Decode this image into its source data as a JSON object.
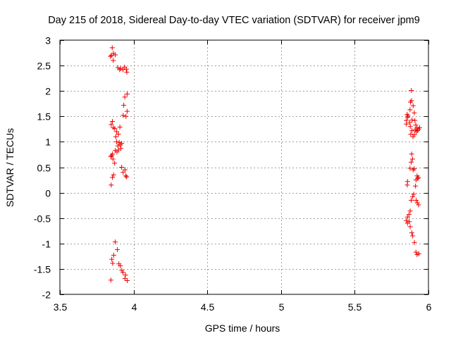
{
  "chart_data": {
    "type": "scatter",
    "title": "Day 215 of 2018, Sidereal Day-to-day VTEC variation (SDTVAR) for receiver jpm9",
    "xlabel": "GPS time / hours",
    "ylabel": "SDTVAR / TECUs",
    "xlim": [
      3.5,
      6
    ],
    "ylim": [
      -2,
      3
    ],
    "xticks": [
      3.5,
      4,
      4.5,
      5,
      5.5,
      6
    ],
    "yticks": [
      -2,
      -1.5,
      -1,
      -0.5,
      0,
      0.5,
      1,
      1.5,
      2,
      2.5,
      3
    ],
    "xtick_labels": [
      "3.5",
      "4",
      "4.5",
      "5",
      "5.5",
      "6"
    ],
    "ytick_labels": [
      "-2",
      "-1.5",
      "-1",
      "-0.5",
      "0",
      "0.5",
      "1",
      "1.5",
      "2",
      "2.5",
      "3"
    ],
    "grid": true,
    "marker": "+",
    "marker_color": "#ee0000",
    "series": [
      {
        "name": "SDTVAR",
        "points": [
          [
            3.855,
            2.85
          ],
          [
            3.843,
            2.68
          ],
          [
            3.85,
            2.7
          ],
          [
            3.863,
            2.74
          ],
          [
            3.862,
            2.6
          ],
          [
            3.876,
            2.71
          ],
          [
            3.893,
            2.46
          ],
          [
            3.905,
            2.42
          ],
          [
            3.913,
            2.44
          ],
          [
            3.928,
            2.42
          ],
          [
            3.939,
            2.47
          ],
          [
            3.951,
            2.43
          ],
          [
            3.954,
            2.37
          ],
          [
            3.94,
            1.88
          ],
          [
            3.956,
            1.94
          ],
          [
            3.933,
            1.72
          ],
          [
            3.956,
            1.6
          ],
          [
            3.948,
            1.5
          ],
          [
            3.929,
            1.52
          ],
          [
            3.848,
            1.34
          ],
          [
            3.856,
            1.4
          ],
          [
            3.862,
            1.28
          ],
          [
            3.872,
            1.26
          ],
          [
            3.885,
            1.2
          ],
          [
            3.897,
            1.15
          ],
          [
            3.907,
            1.29
          ],
          [
            3.879,
            1.1
          ],
          [
            3.885,
            1.0
          ],
          [
            3.893,
            0.92
          ],
          [
            3.902,
            0.99
          ],
          [
            3.91,
            0.94
          ],
          [
            3.919,
            0.97
          ],
          [
            3.914,
            0.87
          ],
          [
            3.898,
            0.84
          ],
          [
            3.887,
            0.8
          ],
          [
            3.876,
            0.83
          ],
          [
            3.857,
            0.76
          ],
          [
            3.851,
            0.73
          ],
          [
            3.845,
            0.71
          ],
          [
            3.86,
            0.66
          ],
          [
            3.871,
            0.58
          ],
          [
            3.919,
            0.5
          ],
          [
            3.929,
            0.4
          ],
          [
            3.942,
            0.45
          ],
          [
            3.947,
            0.33
          ],
          [
            3.953,
            0.31
          ],
          [
            3.864,
            0.35
          ],
          [
            3.856,
            0.3
          ],
          [
            3.848,
            0.15
          ],
          [
            3.875,
            -0.97
          ],
          [
            3.89,
            -1.12
          ],
          [
            3.865,
            -1.23
          ],
          [
            3.852,
            -1.31
          ],
          [
            3.858,
            -1.39
          ],
          [
            3.9,
            -1.4
          ],
          [
            3.91,
            -1.44
          ],
          [
            3.92,
            -1.53
          ],
          [
            3.928,
            -1.57
          ],
          [
            3.945,
            -1.62
          ],
          [
            3.941,
            -1.69
          ],
          [
            3.957,
            -1.73
          ],
          [
            3.846,
            -1.72
          ],
          [
            5.884,
            2.01
          ],
          [
            5.878,
            1.78
          ],
          [
            5.885,
            1.81
          ],
          [
            5.896,
            1.71
          ],
          [
            5.875,
            1.63
          ],
          [
            5.904,
            1.57
          ],
          [
            5.855,
            1.54
          ],
          [
            5.859,
            1.48
          ],
          [
            5.862,
            1.51
          ],
          [
            5.85,
            1.42
          ],
          [
            5.85,
            1.35
          ],
          [
            5.873,
            1.38
          ],
          [
            5.877,
            1.3
          ],
          [
            5.889,
            1.43
          ],
          [
            5.908,
            1.42
          ],
          [
            5.914,
            1.33
          ],
          [
            5.91,
            1.24
          ],
          [
            5.917,
            1.2
          ],
          [
            5.922,
            1.27
          ],
          [
            5.934,
            1.25
          ],
          [
            5.94,
            1.28
          ],
          [
            5.926,
            1.22
          ],
          [
            5.888,
            1.22
          ],
          [
            5.88,
            1.15
          ],
          [
            5.895,
            1.1
          ],
          [
            5.905,
            1.14
          ],
          [
            5.886,
            0.76
          ],
          [
            5.892,
            0.66
          ],
          [
            5.883,
            0.6
          ],
          [
            5.875,
            0.48
          ],
          [
            5.896,
            0.45
          ],
          [
            5.904,
            0.47
          ],
          [
            5.923,
            0.33
          ],
          [
            5.927,
            0.28
          ],
          [
            5.932,
            0.3
          ],
          [
            5.916,
            0.25
          ],
          [
            5.858,
            0.22
          ],
          [
            5.856,
            0.15
          ],
          [
            5.912,
            0.13
          ],
          [
            5.9,
            -0.03
          ],
          [
            5.893,
            -0.08
          ],
          [
            5.883,
            -0.15
          ],
          [
            5.917,
            -0.15
          ],
          [
            5.925,
            -0.2
          ],
          [
            5.933,
            -0.24
          ],
          [
            5.876,
            -0.36
          ],
          [
            5.868,
            -0.43
          ],
          [
            5.858,
            -0.48
          ],
          [
            5.85,
            -0.55
          ],
          [
            5.858,
            -0.6
          ],
          [
            5.87,
            -0.57
          ],
          [
            5.876,
            -0.67
          ],
          [
            5.887,
            -0.79
          ],
          [
            5.893,
            -0.85
          ],
          [
            5.905,
            -0.98
          ],
          [
            5.915,
            -1.17
          ],
          [
            5.923,
            -1.22
          ],
          [
            5.935,
            -1.2
          ]
        ]
      }
    ]
  }
}
